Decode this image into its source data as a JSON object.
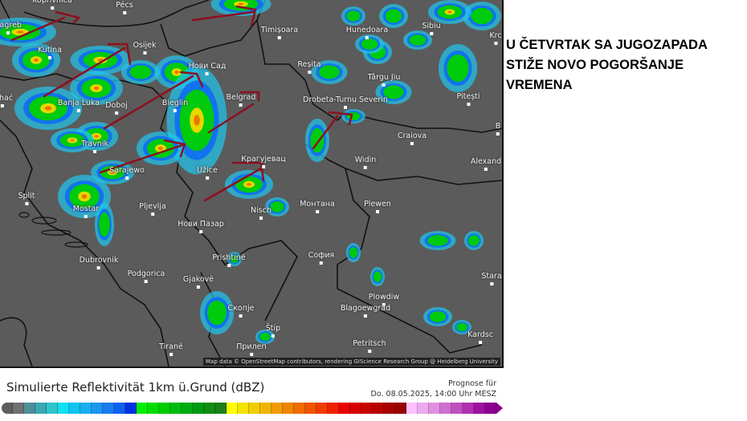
{
  "headline": {
    "lines": [
      "U ČETVRTAK SA JUGOZAPADA",
      "STIŽE NOVO POGORŠANJE",
      "VREMENA"
    ]
  },
  "map": {
    "attribution": "Map data © OpenStreetMap contributors, rendering GIScience Research Group @ Heidelberg University",
    "cities": [
      "Koprivnica",
      "Pécs",
      "Zagreb",
      "Kutina",
      "Osijek",
      "Нови Сад",
      "Belgrad",
      "Banja Luka",
      "Doboj",
      "Bieglin",
      "Travnik",
      "Sarajewo",
      "Užice",
      "Крагујевац",
      "Timișoara",
      "Hunedoara",
      "Sibiu",
      "Krc",
      "Reșița",
      "Târgu Jiu",
      "Drobeta-Turnu Severin",
      "Pitești",
      "Craiova",
      "Widin",
      "Alexand",
      "Split",
      "Mostar",
      "Pljevlja",
      "Нови Пазар",
      "Nisch",
      "Монтана",
      "Plewen",
      "Prishtinë",
      "София",
      "Dubrovnik",
      "Podgorica",
      "Gjakovë",
      "Stara",
      "Plowdiw",
      "Скопје",
      "Blagoewgrad",
      "Štip",
      "Kardsc",
      "Tiranë",
      "Прилеп",
      "Petritsch",
      "Bihać",
      "B"
    ],
    "annotation_color": "#8b1020"
  },
  "legend": {
    "title": "Simulierte Reflektivität 1km ü.Grund (dBZ)",
    "forecast_label": "Prognose für",
    "forecast_time": "Do. 08.05.2025, 14:00 Uhr MESZ",
    "colors": [
      "#5e5e5e",
      "#707070",
      "#4f8f98",
      "#3aa9b4",
      "#2fc4cc",
      "#10e0f0",
      "#10c4f0",
      "#18aef0",
      "#1c96f0",
      "#1a7cf0",
      "#1060f0",
      "#0030e0",
      "#00ee00",
      "#00dd00",
      "#00cc00",
      "#00bb10",
      "#00aa10",
      "#009a10",
      "#108c10",
      "#1a801a",
      "#ffff00",
      "#f4e400",
      "#f0cc00",
      "#f0b400",
      "#f09c00",
      "#f08400",
      "#f06c00",
      "#f05400",
      "#f03c00",
      "#f02000",
      "#e80000",
      "#d80000",
      "#c80000",
      "#b80000",
      "#a80000",
      "#980000",
      "#ffc0ff",
      "#eeaaee",
      "#e090e0",
      "#d070d0",
      "#c050c0",
      "#b030b0",
      "#a010a0",
      "#8a0090"
    ]
  }
}
